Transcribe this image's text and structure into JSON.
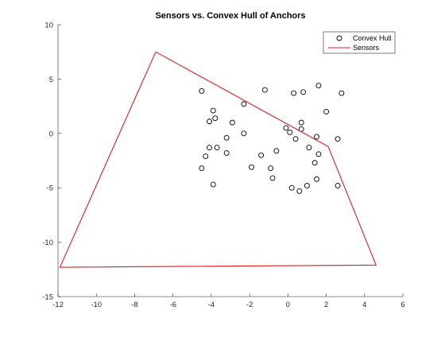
{
  "chart_data": {
    "type": "scatter",
    "title": "Sensors vs. Convex Hull of Anchors",
    "xlabel": "",
    "ylabel": "",
    "xlim": [
      -12,
      6
    ],
    "ylim": [
      -15,
      10
    ],
    "xticks": [
      -12,
      -10,
      -8,
      -6,
      -4,
      -2,
      0,
      2,
      4,
      6
    ],
    "yticks": [
      -15,
      -10,
      -5,
      0,
      5,
      10
    ],
    "grid": false,
    "legend_position": "top-right",
    "legend": [
      "Convex Hull",
      "Sensors"
    ],
    "series": [
      {
        "name": "Convex Hull",
        "kind": "markers",
        "marker": "circle-open",
        "color": "#000000",
        "points": [
          [
            -4.5,
            3.9
          ],
          [
            -3.9,
            2.1
          ],
          [
            -3.8,
            1.4
          ],
          [
            -4.1,
            1.1
          ],
          [
            -2.3,
            2.7
          ],
          [
            -2.9,
            1.0
          ],
          [
            -3.2,
            -0.4
          ],
          [
            -2.3,
            0.0
          ],
          [
            -4.1,
            -1.3
          ],
          [
            -3.7,
            -1.3
          ],
          [
            -3.2,
            -1.8
          ],
          [
            -4.3,
            -2.1
          ],
          [
            -4.5,
            -3.2
          ],
          [
            -3.9,
            -4.7
          ],
          [
            -1.2,
            4.0
          ],
          [
            -1.4,
            -2.0
          ],
          [
            -1.9,
            -3.1
          ],
          [
            -0.6,
            -1.6
          ],
          [
            -0.9,
            -3.2
          ],
          [
            -0.8,
            -4.1
          ],
          [
            -0.1,
            0.5
          ],
          [
            0.1,
            0.1
          ],
          [
            0.3,
            3.7
          ],
          [
            0.8,
            3.8
          ],
          [
            1.6,
            4.4
          ],
          [
            2.8,
            3.7
          ],
          [
            2.0,
            2.0
          ],
          [
            0.7,
            1.0
          ],
          [
            0.7,
            0.4
          ],
          [
            0.4,
            -0.5
          ],
          [
            1.5,
            -0.3
          ],
          [
            1.1,
            -1.3
          ],
          [
            1.6,
            -1.9
          ],
          [
            1.4,
            -2.7
          ],
          [
            0.2,
            -5.0
          ],
          [
            0.6,
            -5.3
          ],
          [
            1.0,
            -4.8
          ],
          [
            1.5,
            -4.2
          ],
          [
            2.6,
            -0.5
          ],
          [
            2.6,
            -4.8
          ]
        ]
      },
      {
        "name": "Sensors",
        "kind": "line",
        "color": "#e31a1c",
        "points": [
          [
            -6.9,
            7.5
          ],
          [
            2.1,
            -1.2
          ],
          [
            4.6,
            -12.1
          ],
          [
            -11.9,
            -12.3
          ],
          [
            -6.9,
            7.5
          ]
        ]
      }
    ]
  }
}
